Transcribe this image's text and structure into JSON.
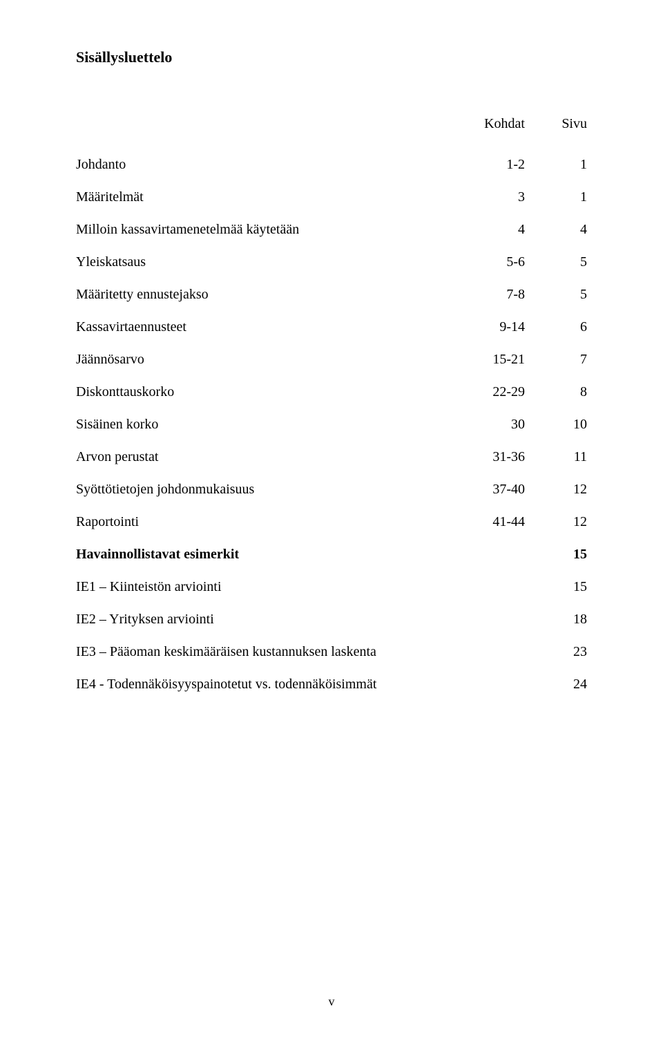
{
  "title": "Sisällysluettelo",
  "headers": {
    "kohdat": "Kohdat",
    "sivu": "Sivu"
  },
  "rows": [
    {
      "label": "Johdanto",
      "kohdat": "1-2",
      "sivu": "1",
      "bold": false
    },
    {
      "label": "Määritelmät",
      "kohdat": "3",
      "sivu": "1",
      "bold": false
    },
    {
      "label": "Milloin kassavirtamenetelmää käytetään",
      "kohdat": "4",
      "sivu": "4",
      "bold": false
    },
    {
      "label": "Yleiskatsaus",
      "kohdat": "5-6",
      "sivu": "5",
      "bold": false
    },
    {
      "label": "Määritetty ennustejakso",
      "kohdat": "7-8",
      "sivu": "5",
      "bold": false
    },
    {
      "label": "Kassavirtaennusteet",
      "kohdat": "9-14",
      "sivu": "6",
      "bold": false
    },
    {
      "label": "Jäännösarvo",
      "kohdat": "15-21",
      "sivu": "7",
      "bold": false
    },
    {
      "label": "Diskonttauskorko",
      "kohdat": "22-29",
      "sivu": "8",
      "bold": false
    },
    {
      "label": "Sisäinen korko",
      "kohdat": "30",
      "sivu": "10",
      "bold": false
    },
    {
      "label": "Arvon perustat",
      "kohdat": "31-36",
      "sivu": "11",
      "bold": false
    },
    {
      "label": "Syöttötietojen johdonmukaisuus",
      "kohdat": "37-40",
      "sivu": "12",
      "bold": false
    },
    {
      "label": "Raportointi",
      "kohdat": "41-44",
      "sivu": "12",
      "bold": false
    },
    {
      "label": "Havainnollistavat esimerkit",
      "kohdat": "",
      "sivu": "15",
      "bold": true
    },
    {
      "label": "IE1 – Kiinteistön arviointi",
      "kohdat": "",
      "sivu": "15",
      "bold": false
    },
    {
      "label": "IE2 – Yrityksen arviointi",
      "kohdat": "",
      "sivu": "18",
      "bold": false
    },
    {
      "label": "IE3 – Pääoman keskimääräisen kustannuksen laskenta",
      "kohdat": "",
      "sivu": "23",
      "bold": false
    },
    {
      "label": "IE4 - Todennäköisyyspainotetut vs. todennäköisimmät",
      "kohdat": "",
      "sivu": "24",
      "bold": false
    }
  ],
  "footer": "v"
}
